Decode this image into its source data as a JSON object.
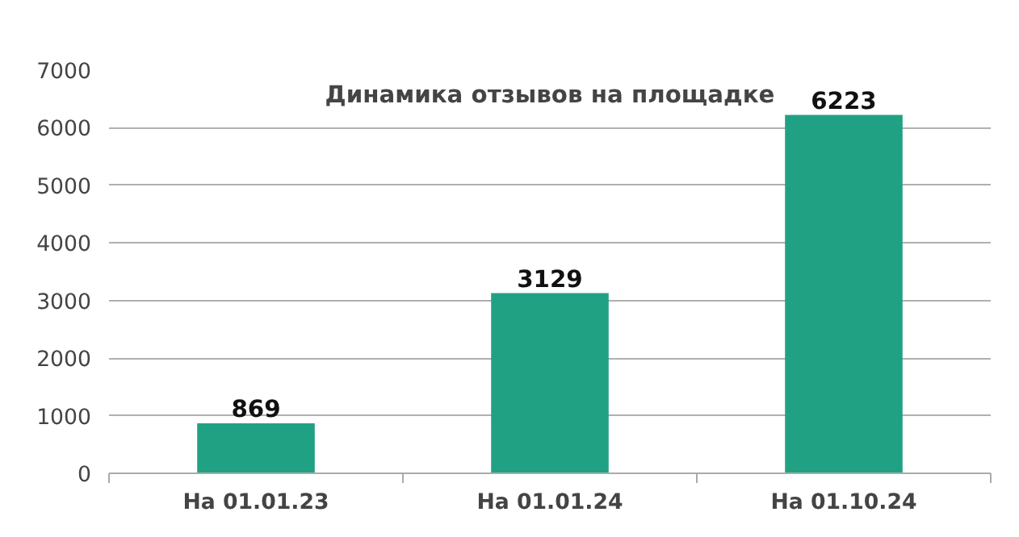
{
  "chart_data": {
    "type": "bar",
    "title": "Динамика отзывов на площадке",
    "categories": [
      "На 01.01.23",
      "На 01.01.24",
      "На 01.10.24"
    ],
    "values": [
      869,
      3129,
      6223
    ],
    "color": "#21a184",
    "ylim": [
      0,
      7000
    ],
    "yticks": [
      0,
      1000,
      2000,
      3000,
      4000,
      5000,
      6000,
      7000
    ],
    "grid": "y",
    "data_labels": true
  }
}
